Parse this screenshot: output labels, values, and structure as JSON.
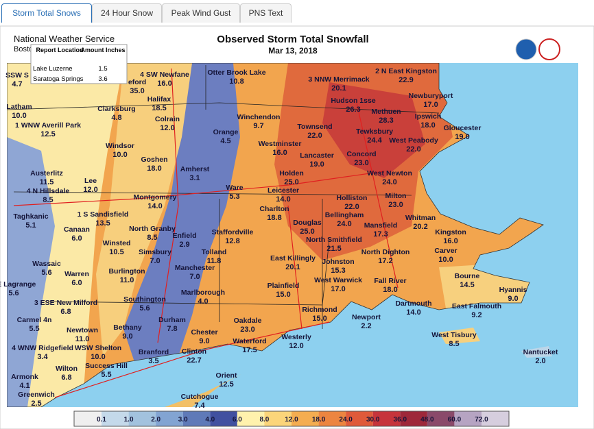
{
  "tabs": [
    "Storm Total Snows",
    "24 Hour Snow",
    "Peak Wind Gust",
    "PNS Text"
  ],
  "header": {
    "agency": "National Weather Service",
    "office": "Bosto",
    "title": "Observed Storm Total Snowfall",
    "date": "Mar 13, 2018"
  },
  "popup": {
    "columns": [
      "Report Location",
      "Amount Inches"
    ],
    "rows": [
      [
        "Lake Luzerne",
        "1.5"
      ],
      [
        "Saratoga Springs",
        "3.6"
      ]
    ]
  },
  "stations": [
    {
      "name": "SSW S",
      "value": "4.7"
    },
    {
      "name": "4 SW Newfane",
      "value": "16.0"
    },
    {
      "name": "eford",
      "value": "35.0"
    },
    {
      "name": "Otter Brook Lake",
      "value": "10.8"
    },
    {
      "name": "2 N East Kingston",
      "value": "22.9"
    },
    {
      "name": "3 NNW Merrimack",
      "value": "20.1"
    },
    {
      "name": "Newburyport",
      "value": "17.0"
    },
    {
      "name": "Halifax",
      "value": "18.5"
    },
    {
      "name": "Hudson 1sse",
      "value": "26.3"
    },
    {
      "name": "Latham",
      "value": "10.0"
    },
    {
      "name": "Clarksburg",
      "value": "4.8"
    },
    {
      "name": "Colrain",
      "value": "12.0"
    },
    {
      "name": "Winchendon",
      "value": "9.7"
    },
    {
      "name": "Methuen",
      "value": "28.3"
    },
    {
      "name": "Ipswich",
      "value": "18.0"
    },
    {
      "name": "1 WNW Averill Park",
      "value": "12.5"
    },
    {
      "name": "Townsend",
      "value": "22.0"
    },
    {
      "name": "Gloucester",
      "value": "19.0"
    },
    {
      "name": "Tewksbury",
      "value": "24.4"
    },
    {
      "name": "Orange",
      "value": "4.5"
    },
    {
      "name": "West Peabody",
      "value": "22.0"
    },
    {
      "name": "Windsor",
      "value": "10.0"
    },
    {
      "name": "Westminster",
      "value": "16.0"
    },
    {
      "name": "Lancaster",
      "value": "19.0"
    },
    {
      "name": "Concord",
      "value": "23.0"
    },
    {
      "name": "Goshen",
      "value": "18.0"
    },
    {
      "name": "Amherst",
      "value": "3.1"
    },
    {
      "name": "Austerlitz",
      "value": "11.5"
    },
    {
      "name": "West Newton",
      "value": "24.0"
    },
    {
      "name": "Holden",
      "value": "25.0"
    },
    {
      "name": "Lee",
      "value": "12.0"
    },
    {
      "name": "4 N Hillsdale",
      "value": "8.5"
    },
    {
      "name": "Ware",
      "value": "5.3"
    },
    {
      "name": "Leicester",
      "value": "14.0"
    },
    {
      "name": "Milton",
      "value": "23.0"
    },
    {
      "name": "Holliston",
      "value": "22.0"
    },
    {
      "name": "Montgomery",
      "value": "14.0"
    },
    {
      "name": "Taghkanic",
      "value": "5.1"
    },
    {
      "name": "1 S Sandisfield",
      "value": "13.5"
    },
    {
      "name": "Charlton",
      "value": "18.8"
    },
    {
      "name": "Bellingham",
      "value": "24.0"
    },
    {
      "name": "Whitman",
      "value": "20.2"
    },
    {
      "name": "Canaan",
      "value": "6.0"
    },
    {
      "name": "North Granby",
      "value": "8.5"
    },
    {
      "name": "Enfield",
      "value": "2.9"
    },
    {
      "name": "Douglas",
      "value": "25.0"
    },
    {
      "name": "Mansfield",
      "value": "17.3"
    },
    {
      "name": "Staffordville",
      "value": "12.8"
    },
    {
      "name": "Kingston",
      "value": "16.0"
    },
    {
      "name": "North Smithfield",
      "value": "21.5"
    },
    {
      "name": "Winsted",
      "value": "10.5"
    },
    {
      "name": "Carver",
      "value": "10.0"
    },
    {
      "name": "Simsbury",
      "value": "7.0"
    },
    {
      "name": "Tolland",
      "value": "11.8"
    },
    {
      "name": "North Dighton",
      "value": "17.2"
    },
    {
      "name": "East Killingly",
      "value": "20.1"
    },
    {
      "name": "Johnston",
      "value": "15.3"
    },
    {
      "name": "Wassaic",
      "value": "5.6"
    },
    {
      "name": "Manchester",
      "value": "7.0"
    },
    {
      "name": "Burlington",
      "value": "11.0"
    },
    {
      "name": "Warren",
      "value": "6.0"
    },
    {
      "name": "Bourne",
      "value": "14.5"
    },
    {
      "name": "West Warwick",
      "value": "17.0"
    },
    {
      "name": "Fall River",
      "value": "18.0"
    },
    {
      "name": "Plainfield",
      "value": "15.0"
    },
    {
      "name": "NE Lagrange",
      "value": "5.6"
    },
    {
      "name": "Hyannis",
      "value": "9.0"
    },
    {
      "name": "Marlborough",
      "value": "4.0"
    },
    {
      "name": "Southington",
      "value": "5.6"
    },
    {
      "name": "3 ESE New Milford",
      "value": "6.8"
    },
    {
      "name": "Dartmouth",
      "value": "14.0"
    },
    {
      "name": "East Falmouth",
      "value": "9.2"
    },
    {
      "name": "Richmond",
      "value": "15.0"
    },
    {
      "name": "Newport",
      "value": "2.2"
    },
    {
      "name": "Durham",
      "value": "7.8"
    },
    {
      "name": "Carmel 4n",
      "value": "5.5"
    },
    {
      "name": "Oakdale",
      "value": "23.0"
    },
    {
      "name": "Newtown",
      "value": "11.0"
    },
    {
      "name": "Bethany",
      "value": "9.0"
    },
    {
      "name": "Chester",
      "value": "9.0"
    },
    {
      "name": "West Tisbury",
      "value": "8.5"
    },
    {
      "name": "Westerly",
      "value": "12.0"
    },
    {
      "name": "Waterford",
      "value": "17.5"
    },
    {
      "name": "4 WNW Ridgefield",
      "value": "3.4"
    },
    {
      "name": "WSW Shelton",
      "value": "10.0"
    },
    {
      "name": "Branford",
      "value": "3.5"
    },
    {
      "name": "Clinton",
      "value": "22.7"
    },
    {
      "name": "Nantucket",
      "value": "2.0"
    },
    {
      "name": "Success Hill",
      "value": "5.5"
    },
    {
      "name": "Wilton",
      "value": "6.8"
    },
    {
      "name": "Orient",
      "value": "12.5"
    },
    {
      "name": "Armonk",
      "value": "4.1"
    },
    {
      "name": "Greenwich",
      "value": "2.5"
    },
    {
      "name": "Cutchogue",
      "value": "7.4"
    }
  ],
  "legend": [
    "0.1",
    "1.0",
    "2.0",
    "3.0",
    "4.0",
    "6.0",
    "8.0",
    "12.0",
    "18.0",
    "24.0",
    "30.0",
    "36.0",
    "48.0",
    "60.0",
    "72.0"
  ]
}
